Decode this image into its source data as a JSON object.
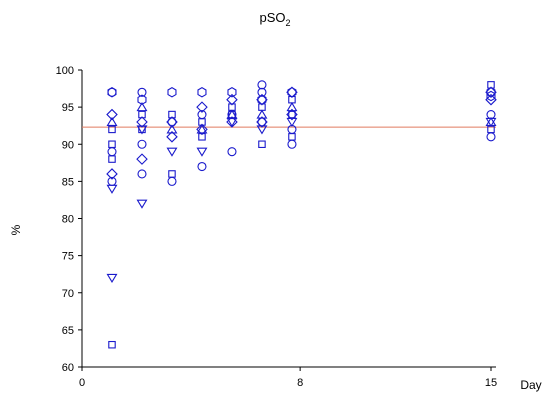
{
  "chart_data": {
    "type": "scatter",
    "title": "pSO",
    "title_subscript": "2",
    "xlabel": "Day",
    "ylabel": "%",
    "xlim": [
      0,
      15
    ],
    "ylim": [
      60,
      100
    ],
    "x_ticks": [
      0,
      8,
      15
    ],
    "y_ticks": [
      60,
      65,
      70,
      75,
      80,
      85,
      90,
      95,
      100
    ],
    "grid": false,
    "legend": "none",
    "marker_color": "#1a1acc",
    "reference_line": {
      "y": 92.3,
      "color": "#e07a5f"
    },
    "series": [
      {
        "marker": "circle",
        "points": [
          [
            1.1,
            97
          ],
          [
            1.1,
            89
          ],
          [
            1.1,
            85
          ],
          [
            2.2,
            97
          ],
          [
            2.2,
            90
          ],
          [
            2.2,
            86
          ],
          [
            3.3,
            93
          ],
          [
            3.3,
            85
          ],
          [
            4.4,
            94
          ],
          [
            4.4,
            87
          ],
          [
            5.5,
            89
          ],
          [
            5.5,
            94
          ],
          [
            6.6,
            98
          ],
          [
            6.6,
            97
          ],
          [
            6.6,
            93
          ],
          [
            7.7,
            92
          ],
          [
            7.7,
            90
          ],
          [
            15,
            94
          ],
          [
            15,
            91
          ]
        ]
      },
      {
        "marker": "square",
        "points": [
          [
            1.1,
            92
          ],
          [
            1.1,
            90
          ],
          [
            1.1,
            88
          ],
          [
            1.1,
            63
          ],
          [
            2.2,
            94
          ],
          [
            2.2,
            92
          ],
          [
            3.3,
            94
          ],
          [
            3.3,
            86
          ],
          [
            4.4,
            93
          ],
          [
            4.4,
            91
          ],
          [
            5.5,
            95
          ],
          [
            5.5,
            94
          ],
          [
            6.6,
            95
          ],
          [
            6.6,
            90
          ],
          [
            7.7,
            96
          ],
          [
            7.7,
            94
          ],
          [
            7.7,
            91
          ],
          [
            15,
            98
          ],
          [
            15,
            92
          ]
        ]
      },
      {
        "marker": "diamond",
        "points": [
          [
            1.1,
            94
          ],
          [
            1.1,
            86
          ],
          [
            2.2,
            93
          ],
          [
            2.2,
            88
          ],
          [
            3.3,
            93
          ],
          [
            3.3,
            91
          ],
          [
            4.4,
            95
          ],
          [
            4.4,
            92
          ],
          [
            5.5,
            96
          ],
          [
            5.5,
            93
          ],
          [
            6.6,
            96
          ],
          [
            6.6,
            93
          ],
          [
            7.7,
            97
          ],
          [
            7.7,
            94
          ],
          [
            15,
            97
          ],
          [
            15,
            96
          ]
        ]
      },
      {
        "marker": "triangle-down",
        "points": [
          [
            1.1,
            84
          ],
          [
            1.1,
            72
          ],
          [
            2.2,
            82
          ],
          [
            2.2,
            92
          ],
          [
            3.3,
            89
          ],
          [
            4.4,
            89
          ],
          [
            5.5,
            93
          ],
          [
            6.6,
            92
          ],
          [
            7.7,
            93
          ],
          [
            15,
            93
          ]
        ]
      },
      {
        "marker": "triangle-up",
        "points": [
          [
            1.1,
            93
          ],
          [
            2.2,
            95
          ],
          [
            3.3,
            92
          ],
          [
            4.4,
            92
          ],
          [
            5.5,
            94
          ],
          [
            6.6,
            94
          ],
          [
            7.7,
            95
          ],
          [
            15,
            93
          ]
        ]
      },
      {
        "marker": "hexagon",
        "points": [
          [
            1.1,
            97
          ],
          [
            2.2,
            96
          ],
          [
            3.3,
            97
          ],
          [
            4.4,
            97
          ],
          [
            5.5,
            97
          ],
          [
            6.6,
            96
          ],
          [
            7.7,
            97
          ],
          [
            15,
            97
          ],
          [
            15,
            96.5
          ]
        ]
      }
    ]
  }
}
